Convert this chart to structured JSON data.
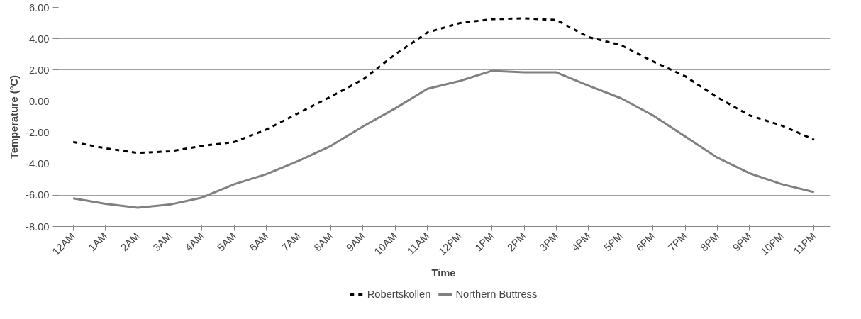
{
  "chart_data": {
    "type": "line",
    "xlabel": "Time",
    "ylabel": "Temperature (°C)",
    "categories": [
      "12AM",
      "1AM",
      "2AM",
      "3AM",
      "4AM",
      "5AM",
      "6AM",
      "7AM",
      "8AM",
      "9AM",
      "10AM",
      "11AM",
      "12PM",
      "1PM",
      "2PM",
      "3PM",
      "4PM",
      "5PM",
      "6PM",
      "7PM",
      "8PM",
      "9PM",
      "10PM",
      "11PM"
    ],
    "series": [
      {
        "name": "Robertskollen",
        "color": "#000000",
        "line_style": "dashed",
        "values": [
          -2.6,
          -3.0,
          -3.3,
          -3.2,
          -2.85,
          -2.6,
          -1.8,
          -0.75,
          0.3,
          1.4,
          3.0,
          4.4,
          5.0,
          5.25,
          5.3,
          5.2,
          4.1,
          3.6,
          2.55,
          1.6,
          0.25,
          -0.9,
          -1.55,
          -2.45
        ]
      },
      {
        "name": "Northern Buttress",
        "color": "#808080",
        "line_style": "solid",
        "values": [
          -6.2,
          -6.55,
          -6.8,
          -6.6,
          -6.15,
          -5.3,
          -4.65,
          -3.8,
          -2.85,
          -1.6,
          -0.45,
          0.8,
          1.3,
          1.95,
          1.85,
          1.85,
          1.0,
          0.2,
          -0.9,
          -2.25,
          -3.6,
          -4.6,
          -5.3,
          -5.8
        ]
      }
    ],
    "ylim": [
      -8,
      6
    ],
    "yticks": [
      {
        "value": -8,
        "label": "-8.00"
      },
      {
        "value": -6,
        "label": "-6.00"
      },
      {
        "value": -4,
        "label": "-4.00"
      },
      {
        "value": -2,
        "label": "-2.00"
      },
      {
        "value": 0,
        "label": "0.00"
      },
      {
        "value": 2,
        "label": "2.00"
      },
      {
        "value": 4,
        "label": "4.00"
      },
      {
        "value": 6,
        "label": "6.00"
      }
    ],
    "grid": "y",
    "legend": "bottom",
    "marker": "none"
  }
}
